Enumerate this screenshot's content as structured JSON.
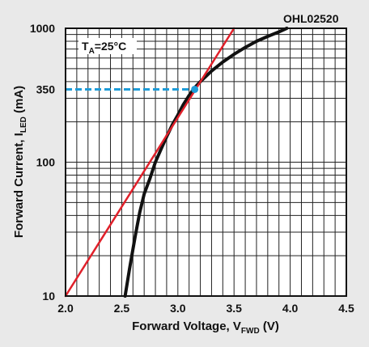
{
  "chart_data": {
    "type": "line",
    "code": "OHL02520",
    "annotation": {
      "prefix": "T",
      "sub": "A",
      "suffix": "=25°C"
    },
    "xlabel": {
      "text": "Forward Voltage, V",
      "sub": "FWD",
      "unit": " (V)"
    },
    "ylabel": {
      "text": "Forward Current, I",
      "sub": "LED",
      "unit": " (mA)"
    },
    "xlim": [
      2.0,
      4.5
    ],
    "ylim": [
      10,
      1000
    ],
    "yscale": "log",
    "grid": true,
    "x_ticks": [
      "2.0",
      "2.5",
      "3.0",
      "3.5",
      "4.0",
      "4.5"
    ],
    "y_ticks": [
      {
        "value": 10,
        "label": "10"
      },
      {
        "value": 100,
        "label": "100"
      },
      {
        "value": 350,
        "label": "350"
      },
      {
        "value": 1000,
        "label": "1000"
      }
    ],
    "series": [
      {
        "color": "#111111",
        "x": [
          2.53,
          2.57,
          2.62,
          2.66,
          2.7,
          2.75,
          2.8,
          2.85,
          2.9,
          2.95,
          3.0,
          3.05,
          3.1,
          3.15,
          3.2,
          3.3,
          3.4,
          3.5,
          3.6,
          3.7,
          3.8,
          3.9,
          3.97
        ],
        "y": [
          10,
          16,
          28,
          42,
          58,
          75,
          100,
          125,
          155,
          190,
          225,
          270,
          315,
          360,
          400,
          480,
          560,
          640,
          720,
          800,
          870,
          940,
          1000
        ]
      },
      {
        "color": "#e0202a",
        "x": [
          2.0,
          3.5
        ],
        "y": [
          10,
          1000
        ]
      }
    ],
    "marker": {
      "x": 3.15,
      "y": 350,
      "color": "#1e9bd7"
    }
  }
}
